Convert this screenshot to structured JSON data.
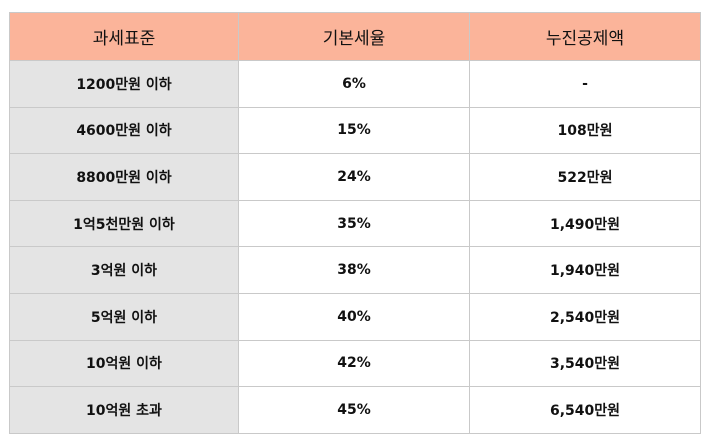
{
  "table": {
    "headers": [
      "과세표준",
      "기본세율",
      "누진공제액"
    ],
    "rows": [
      [
        "1200만원 이하",
        "6%",
        "-"
      ],
      [
        "4600만원 이하",
        "15%",
        "108만원"
      ],
      [
        "8800만원 이하",
        "24%",
        "522만원"
      ],
      [
        "1억5천만원 이하",
        "35%",
        "1,490만원"
      ],
      [
        "3억원 이하",
        "38%",
        "1,940만원"
      ],
      [
        "5억원 이하",
        "40%",
        "2,540만원"
      ],
      [
        "10억원 이하",
        "42%",
        "3,540만원"
      ],
      [
        "10억원 초과",
        "45%",
        "6,540만원"
      ]
    ]
  },
  "colors": {
    "header_bg": "#fbb49a",
    "first_col_bg": "#e4e4e4",
    "border": "#c9c9c9"
  }
}
